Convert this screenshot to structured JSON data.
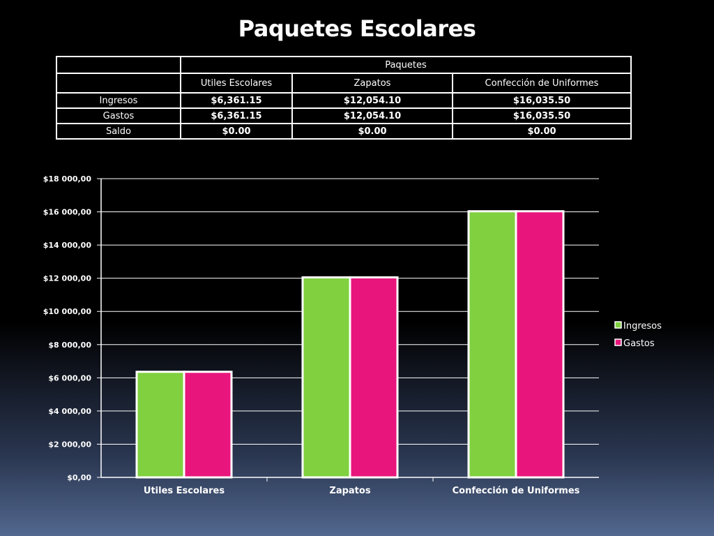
{
  "title": "Paquetes Escolares",
  "table": {
    "group_header": "Paquetes",
    "columns": [
      "Utiles Escolares",
      "Zapatos",
      "Confección de Uniformes"
    ],
    "rows": [
      {
        "label": "Ingresos",
        "values": [
          "$6,361.15",
          "$12,054.10",
          "$16,035.50"
        ]
      },
      {
        "label": "Gastos",
        "values": [
          "$6,361.15",
          "$12,054.10",
          "$16,035.50"
        ]
      },
      {
        "label": "Saldo",
        "values": [
          "$0.00",
          "$0.00",
          "$0.00"
        ]
      }
    ]
  },
  "chart_data": {
    "type": "bar",
    "categories": [
      "Utiles Escolares",
      "Zapatos",
      "Confección de Uniformes"
    ],
    "series": [
      {
        "name": "Ingresos",
        "values": [
          6361.15,
          12054.1,
          16035.5
        ],
        "color": "#80d040"
      },
      {
        "name": "Gastos",
        "values": [
          6361.15,
          12054.1,
          16035.5
        ],
        "color": "#e8167c"
      }
    ],
    "ylim": [
      0,
      18000
    ],
    "yticks": [
      0,
      2000,
      4000,
      6000,
      8000,
      10000,
      12000,
      14000,
      16000,
      18000
    ],
    "ytick_labels": [
      "$0,00",
      "$2 000,00",
      "$4 000,00",
      "$6 000,00",
      "$8 000,00",
      "$10 000,00",
      "$12 000,00",
      "$14 000,00",
      "$16 000,00",
      "$18 000,00"
    ],
    "grid": true,
    "legend": "right",
    "bar_outline_color": "#ffffff"
  }
}
